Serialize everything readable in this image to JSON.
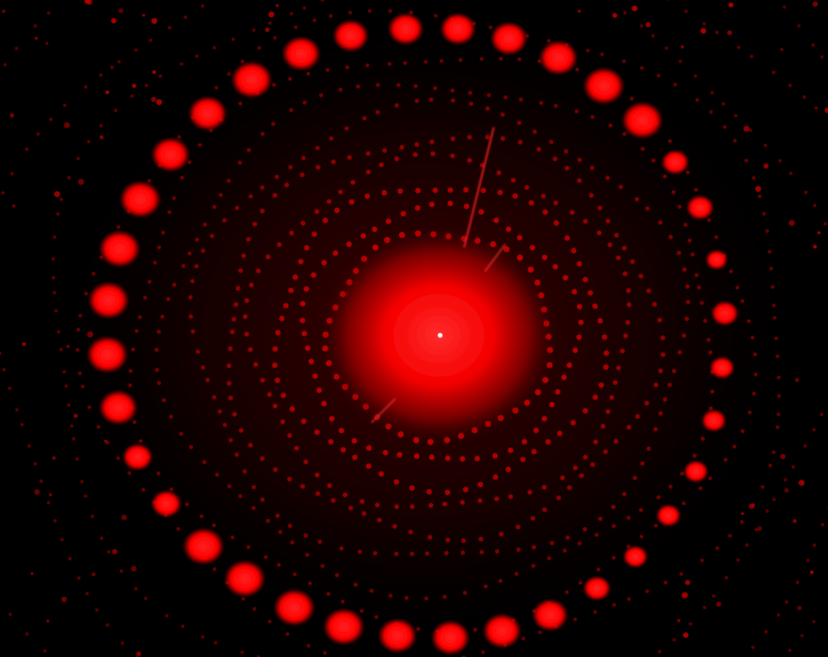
{
  "image": {
    "alt": "",
    "colors": {
      "background": "#000000",
      "glow": "#ff0000",
      "spot": "#ff1a1a",
      "dim_dot": "#cc0000",
      "center_speck": "#ffffff"
    }
  }
}
